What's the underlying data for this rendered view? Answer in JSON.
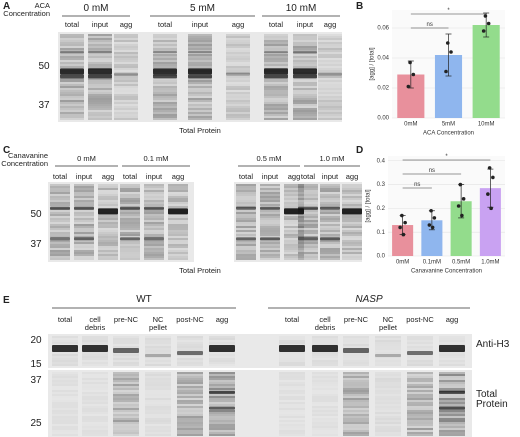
{
  "panels": [
    "A",
    "B",
    "C",
    "D",
    "E"
  ],
  "gel_a": {
    "condition_label": "ACA Concentration",
    "groups": [
      "0 mM",
      "5 mM",
      "10 mM"
    ],
    "lanes": [
      "total",
      "input",
      "agg",
      "total",
      "input",
      "agg",
      "total",
      "input",
      "agg"
    ],
    "markers": [
      50,
      37
    ],
    "caption": "Total Protein"
  },
  "gel_c": {
    "condition_label": "Canavanine Concentration",
    "groups": [
      "0 mM",
      "0.1 mM",
      "0.5 mM",
      "1.0 mM"
    ],
    "lanes": [
      "total",
      "input",
      "agg",
      "total",
      "input",
      "agg",
      "total",
      "input",
      "agg",
      "total",
      "input",
      "agg"
    ],
    "markers": [
      50,
      37
    ],
    "caption": "Total Protein"
  },
  "gel_e": {
    "groups": [
      "WT",
      "NASP"
    ],
    "lanes": [
      "total",
      "cell debris",
      "pre-NC",
      "NC pellet",
      "post-NC",
      "agg",
      "total",
      "cell debris",
      "pre-NC",
      "NC pellet",
      "post-NC",
      "agg"
    ],
    "blot_markers": [
      20,
      15
    ],
    "protein_markers": [
      37,
      25
    ],
    "blot_label": "Anti-H3",
    "protein_label": "Total Protein"
  },
  "chart_data": [
    {
      "type": "bar",
      "y_label": "[agg] / [total]",
      "x_label": "ACA Concentration",
      "categories": [
        "0mM",
        "5mM",
        "10mM"
      ],
      "values": [
        0.029,
        0.042,
        0.062
      ],
      "errors": [
        0.009,
        0.014,
        0.008
      ],
      "points": [
        [
          0.037,
          0.029,
          0.021
        ],
        [
          0.05,
          0.044,
          0.031
        ],
        [
          0.068,
          0.063,
          0.058
        ]
      ],
      "colors": [
        "#e8909c",
        "#8fb6ee",
        "#93dc8c"
      ],
      "annotations": [
        "ns",
        "*"
      ],
      "ylim": [
        0,
        0.072
      ],
      "yticks": [
        {
          "value": 0,
          "label": "0.00"
        },
        {
          "value": 0.02,
          "label": "0.02"
        },
        {
          "value": 0.04,
          "label": "0.04"
        },
        {
          "value": 0.06,
          "label": "0.06"
        }
      ],
      "grid": true
    },
    {
      "type": "bar",
      "y_label": "[agg] / [total]",
      "x_label": "Canavanine Concentration",
      "categories": [
        "0mM",
        "0.1mM",
        "0.5mM",
        "1.0mM"
      ],
      "values": [
        0.13,
        0.15,
        0.23,
        0.285
      ],
      "errors": [
        0.04,
        0.04,
        0.07,
        0.08
      ],
      "points": [
        [
          0.17,
          0.14,
          0.12,
          0.09
        ],
        [
          0.19,
          0.16,
          0.13,
          0.12
        ],
        [
          0.3,
          0.24,
          0.21,
          0.17
        ],
        [
          0.37,
          0.33,
          0.26,
          0.2
        ]
      ],
      "colors": [
        "#e8909c",
        "#8fb6ee",
        "#93dc8c",
        "#c9a2f2"
      ],
      "annotations": [
        "ns",
        "ns",
        "*"
      ],
      "ylim": [
        0,
        0.42
      ],
      "yticks": [
        {
          "value": 0,
          "label": "0.0"
        },
        {
          "value": 0.1,
          "label": "0.1"
        },
        {
          "value": 0.2,
          "label": "0.2"
        },
        {
          "value": 0.3,
          "label": "0.3"
        },
        {
          "value": 0.4,
          "label": "0.4"
        }
      ],
      "grid": true
    }
  ]
}
